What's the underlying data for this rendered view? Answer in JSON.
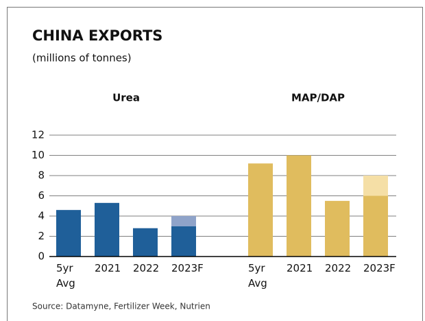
{
  "chart_data": {
    "type": "bar",
    "stacked": true,
    "title": "CHINA EXPORTS",
    "subtitle": "(millions of tonnes)",
    "source": "Source: Datamyne, Fertilizer Week, Nutrien",
    "ylim": [
      0,
      12
    ],
    "yticks": [
      0,
      2,
      4,
      6,
      8,
      10,
      12
    ],
    "grid": true,
    "groups": [
      {
        "name": "Urea",
        "categories": [
          "5yr Avg",
          "2021",
          "2022",
          "2023F"
        ],
        "series": [
          {
            "color": "#1f5f99",
            "values": [
              4.6,
              5.3,
              2.8,
              3.0
            ]
          },
          {
            "color": "#8fa3c9",
            "values": [
              null,
              null,
              null,
              1.0
            ]
          }
        ]
      },
      {
        "name": "MAP/DAP",
        "categories": [
          "5yr Avg",
          "2021",
          "2022",
          "2023F"
        ],
        "series": [
          {
            "color": "#e0bc5e",
            "values": [
              9.2,
              10.0,
              5.5,
              6.0
            ]
          },
          {
            "color": "#f5dfa6",
            "values": [
              null,
              null,
              null,
              2.0
            ]
          }
        ]
      }
    ]
  }
}
